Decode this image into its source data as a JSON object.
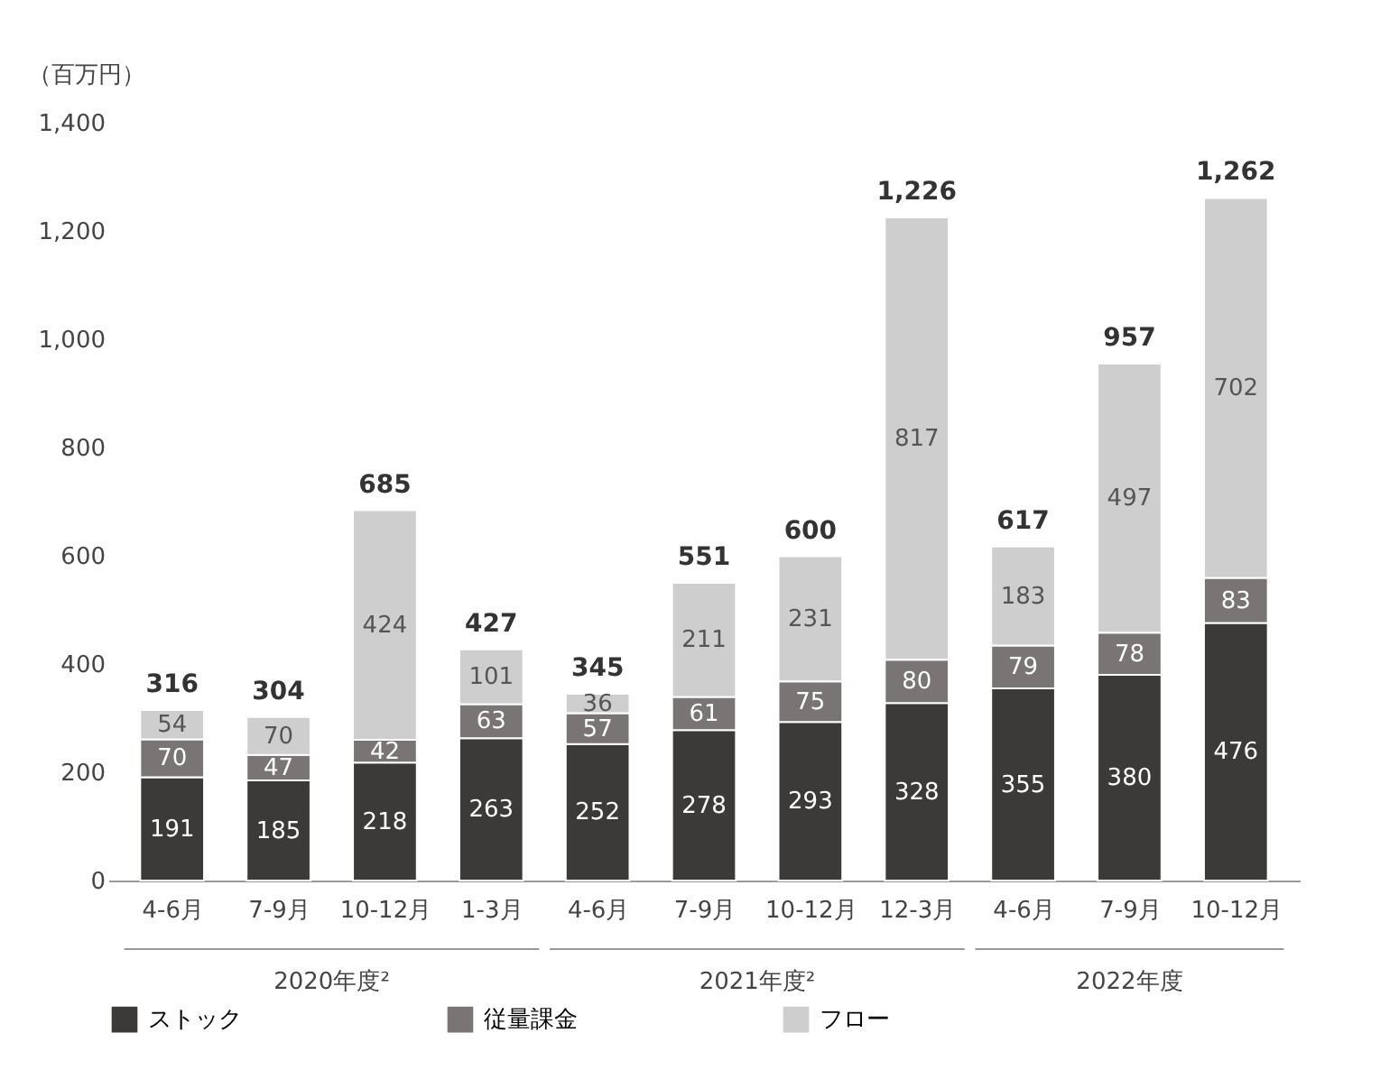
{
  "chart_data": {
    "type": "bar",
    "stacked": true,
    "ylabel": "（百万円）",
    "categories": [
      "4-6月",
      "7-9月",
      "10-12月",
      "1-3月",
      "4-6月",
      "7-9月",
      "10-12月",
      "12-3月",
      "4-6月",
      "7-9月",
      "10-12月"
    ],
    "series": [
      {
        "name": "ストック",
        "color": "#3b3a39",
        "values": [
          191,
          185,
          218,
          263,
          252,
          278,
          293,
          328,
          355,
          380,
          476
        ]
      },
      {
        "name": "従量課金",
        "color": "#787574",
        "values": [
          70,
          47,
          42,
          63,
          57,
          61,
          75,
          80,
          79,
          78,
          83
        ]
      },
      {
        "name": "フロー",
        "color": "#cfcece",
        "values": [
          54,
          70,
          424,
          101,
          36,
          211,
          231,
          817,
          183,
          497,
          702
        ]
      }
    ],
    "totals": [
      "316",
      "304",
      "685",
      "427",
      "345",
      "551",
      "600",
      "1,226",
      "617",
      "957",
      "1,262"
    ],
    "data_labels": true,
    "annotations": [
      "2020年度²",
      "2021年度²",
      "2022年度"
    ],
    "ylim": [
      0,
      1400
    ],
    "yticks": [
      0,
      200,
      400,
      600,
      800,
      {
        "value": 1000,
        "label": "1,000"
      },
      {
        "value": 1200,
        "label": "1,200"
      },
      {
        "value": 1400,
        "label": "1,400"
      }
    ],
    "grid": false,
    "legend": "bottom"
  }
}
